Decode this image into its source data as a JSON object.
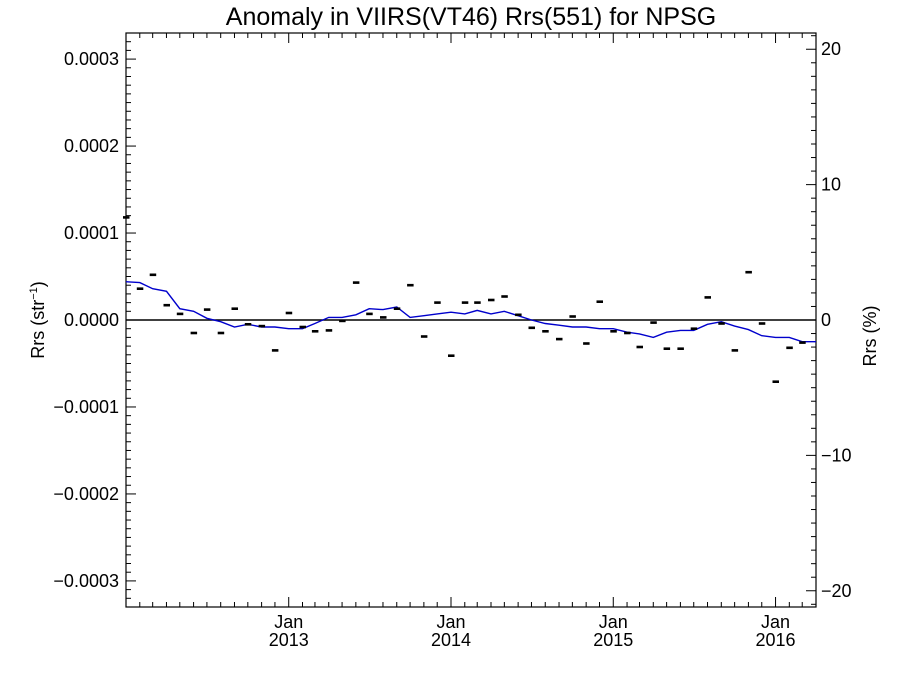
{
  "chart_data": {
    "type": "scatter",
    "title": "Anomaly in VIIRS(VT46) Rrs(551) for NPSG",
    "ylabel_left": {
      "base": "Rrs (str",
      "sup": "−1",
      "close": ")"
    },
    "ylabel_right": "Rrs (%)",
    "xlim": [
      "2012-01-01",
      "2016-04-01"
    ],
    "ylim": [
      -0.00033,
      0.00033
    ],
    "ylim_right": [
      -21.2,
      21.2
    ],
    "grid": false,
    "zero_line": true,
    "x_ticks": [
      {
        "date": "2013-01-01",
        "label_top": "Jan",
        "label_bottom": "2013"
      },
      {
        "date": "2014-01-01",
        "label_top": "Jan",
        "label_bottom": "2014"
      },
      {
        "date": "2015-01-01",
        "label_top": "Jan",
        "label_bottom": "2015"
      },
      {
        "date": "2016-01-01",
        "label_top": "Jan",
        "label_bottom": "2016"
      }
    ],
    "y_ticks_left": [
      {
        "value": 0.0003,
        "label": "0.0003"
      },
      {
        "value": 0.0002,
        "label": "0.0002"
      },
      {
        "value": 0.0001,
        "label": "0.0001"
      },
      {
        "value": 0.0,
        "label": "0.0000"
      },
      {
        "value": -0.0001,
        "label": "−0.0001"
      },
      {
        "value": -0.0002,
        "label": "−0.0002"
      },
      {
        "value": -0.0003,
        "label": "−0.0003"
      }
    ],
    "y_ticks_right": [
      {
        "value": 20,
        "label": "20"
      },
      {
        "value": 10,
        "label": "10"
      },
      {
        "value": 0,
        "label": "0"
      },
      {
        "value": -10,
        "label": "−10"
      },
      {
        "value": -20,
        "label": "−20"
      }
    ],
    "series": [
      {
        "kind": "markers",
        "color": "#000000",
        "points": [
          [
            "2012-01-01",
            0.000118
          ],
          [
            "2012-02-01",
            3.6e-05
          ],
          [
            "2012-03-01",
            5.2e-05
          ],
          [
            "2012-04-01",
            1.7e-05
          ],
          [
            "2012-05-01",
            7e-06
          ],
          [
            "2012-06-01",
            -1.5e-05
          ],
          [
            "2012-07-01",
            1.2e-05
          ],
          [
            "2012-08-01",
            -1.5e-05
          ],
          [
            "2012-09-01",
            1.3e-05
          ],
          [
            "2012-10-01",
            -5e-06
          ],
          [
            "2012-11-01",
            -7e-06
          ],
          [
            "2012-12-01",
            -3.5e-05
          ],
          [
            "2013-01-01",
            8e-06
          ],
          [
            "2013-02-01",
            -8e-06
          ],
          [
            "2013-03-01",
            -1.3e-05
          ],
          [
            "2013-04-01",
            -1.2e-05
          ],
          [
            "2013-05-01",
            -1e-06
          ],
          [
            "2013-06-01",
            4.3e-05
          ],
          [
            "2013-07-01",
            7e-06
          ],
          [
            "2013-08-01",
            3e-06
          ],
          [
            "2013-09-01",
            1.3e-05
          ],
          [
            "2013-10-01",
            4e-05
          ],
          [
            "2013-11-01",
            -1.9e-05
          ],
          [
            "2013-12-01",
            2e-05
          ],
          [
            "2014-01-01",
            -4.1e-05
          ],
          [
            "2014-02-01",
            2e-05
          ],
          [
            "2014-03-01",
            2e-05
          ],
          [
            "2014-04-01",
            2.3e-05
          ],
          [
            "2014-05-01",
            2.7e-05
          ],
          [
            "2014-06-01",
            6e-06
          ],
          [
            "2014-07-01",
            -9e-06
          ],
          [
            "2014-08-01",
            -1.3e-05
          ],
          [
            "2014-09-01",
            -2.2e-05
          ],
          [
            "2014-10-01",
            4e-06
          ],
          [
            "2014-11-01",
            -2.7e-05
          ],
          [
            "2014-12-01",
            2.1e-05
          ],
          [
            "2015-01-01",
            -1.3e-05
          ],
          [
            "2015-02-01",
            -1.5e-05
          ],
          [
            "2015-03-01",
            -3.1e-05
          ],
          [
            "2015-04-01",
            -3e-06
          ],
          [
            "2015-05-01",
            -3.3e-05
          ],
          [
            "2015-06-01",
            -3.3e-05
          ],
          [
            "2015-07-01",
            -1e-05
          ],
          [
            "2015-08-01",
            2.6e-05
          ],
          [
            "2015-09-01",
            -4e-06
          ],
          [
            "2015-10-01",
            -3.5e-05
          ],
          [
            "2015-11-01",
            5.5e-05
          ],
          [
            "2015-12-01",
            -4e-06
          ],
          [
            "2016-01-01",
            -7.1e-05
          ],
          [
            "2016-02-01",
            -3.2e-05
          ],
          [
            "2016-03-01",
            -2.6e-05
          ]
        ]
      },
      {
        "kind": "line",
        "color": "#0000cc",
        "points": [
          [
            "2012-01-01",
            4.4e-05
          ],
          [
            "2012-02-01",
            4.3e-05
          ],
          [
            "2012-03-01",
            3.6e-05
          ],
          [
            "2012-04-01",
            3.3e-05
          ],
          [
            "2012-05-01",
            1.3e-05
          ],
          [
            "2012-06-01",
            1e-05
          ],
          [
            "2012-07-01",
            2e-06
          ],
          [
            "2012-08-01",
            -2e-06
          ],
          [
            "2012-09-01",
            -8e-06
          ],
          [
            "2012-10-01",
            -5e-06
          ],
          [
            "2012-11-01",
            -8e-06
          ],
          [
            "2012-12-01",
            -8e-06
          ],
          [
            "2013-01-01",
            -1e-05
          ],
          [
            "2013-02-01",
            -1e-05
          ],
          [
            "2013-03-01",
            -4e-06
          ],
          [
            "2013-04-01",
            3e-06
          ],
          [
            "2013-05-01",
            3e-06
          ],
          [
            "2013-06-01",
            6e-06
          ],
          [
            "2013-07-01",
            1.3e-05
          ],
          [
            "2013-08-01",
            1.2e-05
          ],
          [
            "2013-09-01",
            1.5e-05
          ],
          [
            "2013-10-01",
            3e-06
          ],
          [
            "2013-11-01",
            5e-06
          ],
          [
            "2013-12-01",
            7e-06
          ],
          [
            "2014-01-01",
            9e-06
          ],
          [
            "2014-02-01",
            7e-06
          ],
          [
            "2014-03-01",
            1.1e-05
          ],
          [
            "2014-04-01",
            7e-06
          ],
          [
            "2014-05-01",
            1e-05
          ],
          [
            "2014-06-01",
            5e-06
          ],
          [
            "2014-07-01",
            0.0
          ],
          [
            "2014-08-01",
            -4e-06
          ],
          [
            "2014-09-01",
            -6e-06
          ],
          [
            "2014-10-01",
            -8e-06
          ],
          [
            "2014-11-01",
            -8e-06
          ],
          [
            "2014-12-01",
            -1e-05
          ],
          [
            "2015-01-01",
            -1e-05
          ],
          [
            "2015-02-01",
            -1.4e-05
          ],
          [
            "2015-03-01",
            -1.6e-05
          ],
          [
            "2015-04-01",
            -2e-05
          ],
          [
            "2015-05-01",
            -1.4e-05
          ],
          [
            "2015-06-01",
            -1.2e-05
          ],
          [
            "2015-07-01",
            -1.2e-05
          ],
          [
            "2015-08-01",
            -5e-06
          ],
          [
            "2015-09-01",
            -2e-06
          ],
          [
            "2015-10-01",
            -7e-06
          ],
          [
            "2015-11-01",
            -1.1e-05
          ],
          [
            "2015-12-01",
            -1.8e-05
          ],
          [
            "2016-01-01",
            -2e-05
          ],
          [
            "2016-02-01",
            -2e-05
          ],
          [
            "2016-03-01",
            -2.5e-05
          ],
          [
            "2016-04-01",
            -2.5e-05
          ]
        ]
      }
    ]
  }
}
